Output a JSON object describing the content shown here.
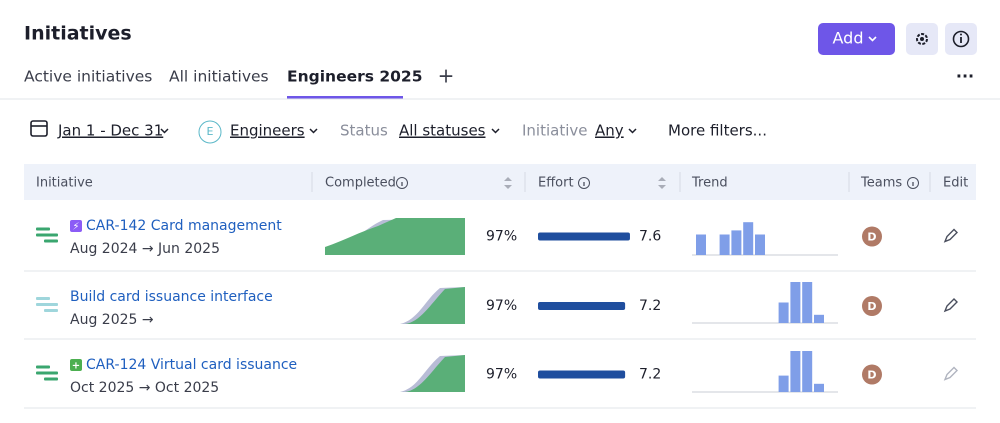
{
  "header": {
    "title": "Initiatives",
    "add_button": "Add"
  },
  "tabs": [
    "Active initiatives",
    "All initiatives",
    "Engineers 2025"
  ],
  "active_tab": 2,
  "filters": {
    "date": "Jan 1 - Dec 31",
    "team_badge": "E",
    "team": "Engineers",
    "status_label": "Status",
    "status": "All statuses",
    "initiative_label": "Initiative",
    "initiative": "Any",
    "more": "More filters..."
  },
  "table": {
    "columns": [
      "Initiative",
      "Completed",
      "Effort",
      "Trend",
      "Teams",
      "Edit"
    ],
    "rows": [
      {
        "title": "CAR-142 Card management",
        "dates": "Aug 2024 → Jun 2025",
        "completed": "97%",
        "effort": 7.6,
        "trend": [
          5,
          0,
          5,
          6,
          8,
          5,
          0,
          0,
          0,
          0,
          0,
          0
        ],
        "team": "D"
      },
      {
        "title": "Build card issuance interface",
        "dates": "Aug 2025 →",
        "completed": "97%",
        "effort": 7.2,
        "trend": [
          0,
          0,
          0,
          0,
          0,
          0,
          0,
          5,
          10,
          10,
          2,
          0
        ],
        "team": "D"
      },
      {
        "title": "CAR-124 Virtual card issuance",
        "dates": "Oct 2025 → Oct 2025",
        "completed": "97%",
        "effort": 7.2,
        "trend": [
          0,
          0,
          0,
          0,
          0,
          0,
          0,
          4,
          10,
          10,
          2,
          0
        ],
        "team": "D"
      }
    ]
  }
}
